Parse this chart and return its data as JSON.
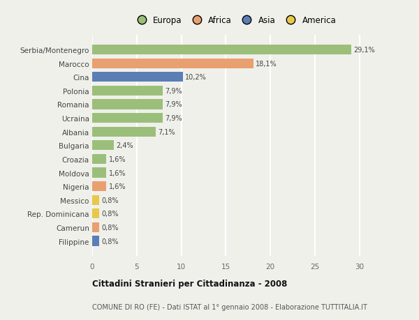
{
  "categories": [
    "Filippine",
    "Camerun",
    "Rep. Dominicana",
    "Messico",
    "Nigeria",
    "Moldova",
    "Croazia",
    "Bulgaria",
    "Albania",
    "Ucraina",
    "Romania",
    "Polonia",
    "Cina",
    "Marocco",
    "Serbia/Montenegro"
  ],
  "values": [
    0.8,
    0.8,
    0.8,
    0.8,
    1.6,
    1.6,
    1.6,
    2.4,
    7.1,
    7.9,
    7.9,
    7.9,
    10.2,
    18.1,
    29.1
  ],
  "labels": [
    "0,8%",
    "0,8%",
    "0,8%",
    "0,8%",
    "1,6%",
    "1,6%",
    "1,6%",
    "2,4%",
    "7,1%",
    "7,9%",
    "7,9%",
    "7,9%",
    "10,2%",
    "18,1%",
    "29,1%"
  ],
  "colors": [
    "#5b7fb5",
    "#e8a070",
    "#e8c84a",
    "#e8c84a",
    "#e8a070",
    "#9bbf7a",
    "#9bbf7a",
    "#9bbf7a",
    "#9bbf7a",
    "#9bbf7a",
    "#9bbf7a",
    "#9bbf7a",
    "#5b7fb5",
    "#e8a070",
    "#9bbf7a"
  ],
  "legend_labels": [
    "Europa",
    "Africa",
    "Asia",
    "America"
  ],
  "legend_colors": [
    "#9bbf7a",
    "#e8a070",
    "#5b7fb5",
    "#e8c84a"
  ],
  "title": "Cittadini Stranieri per Cittadinanza - 2008",
  "subtitle": "COMUNE DI RO (FE) - Dati ISTAT al 1° gennaio 2008 - Elaborazione TUTTITALIA.IT",
  "xlim": [
    0,
    32
  ],
  "xticks": [
    0,
    5,
    10,
    15,
    20,
    25,
    30
  ],
  "bg_color": "#f0f0eb",
  "bar_height": 0.72
}
